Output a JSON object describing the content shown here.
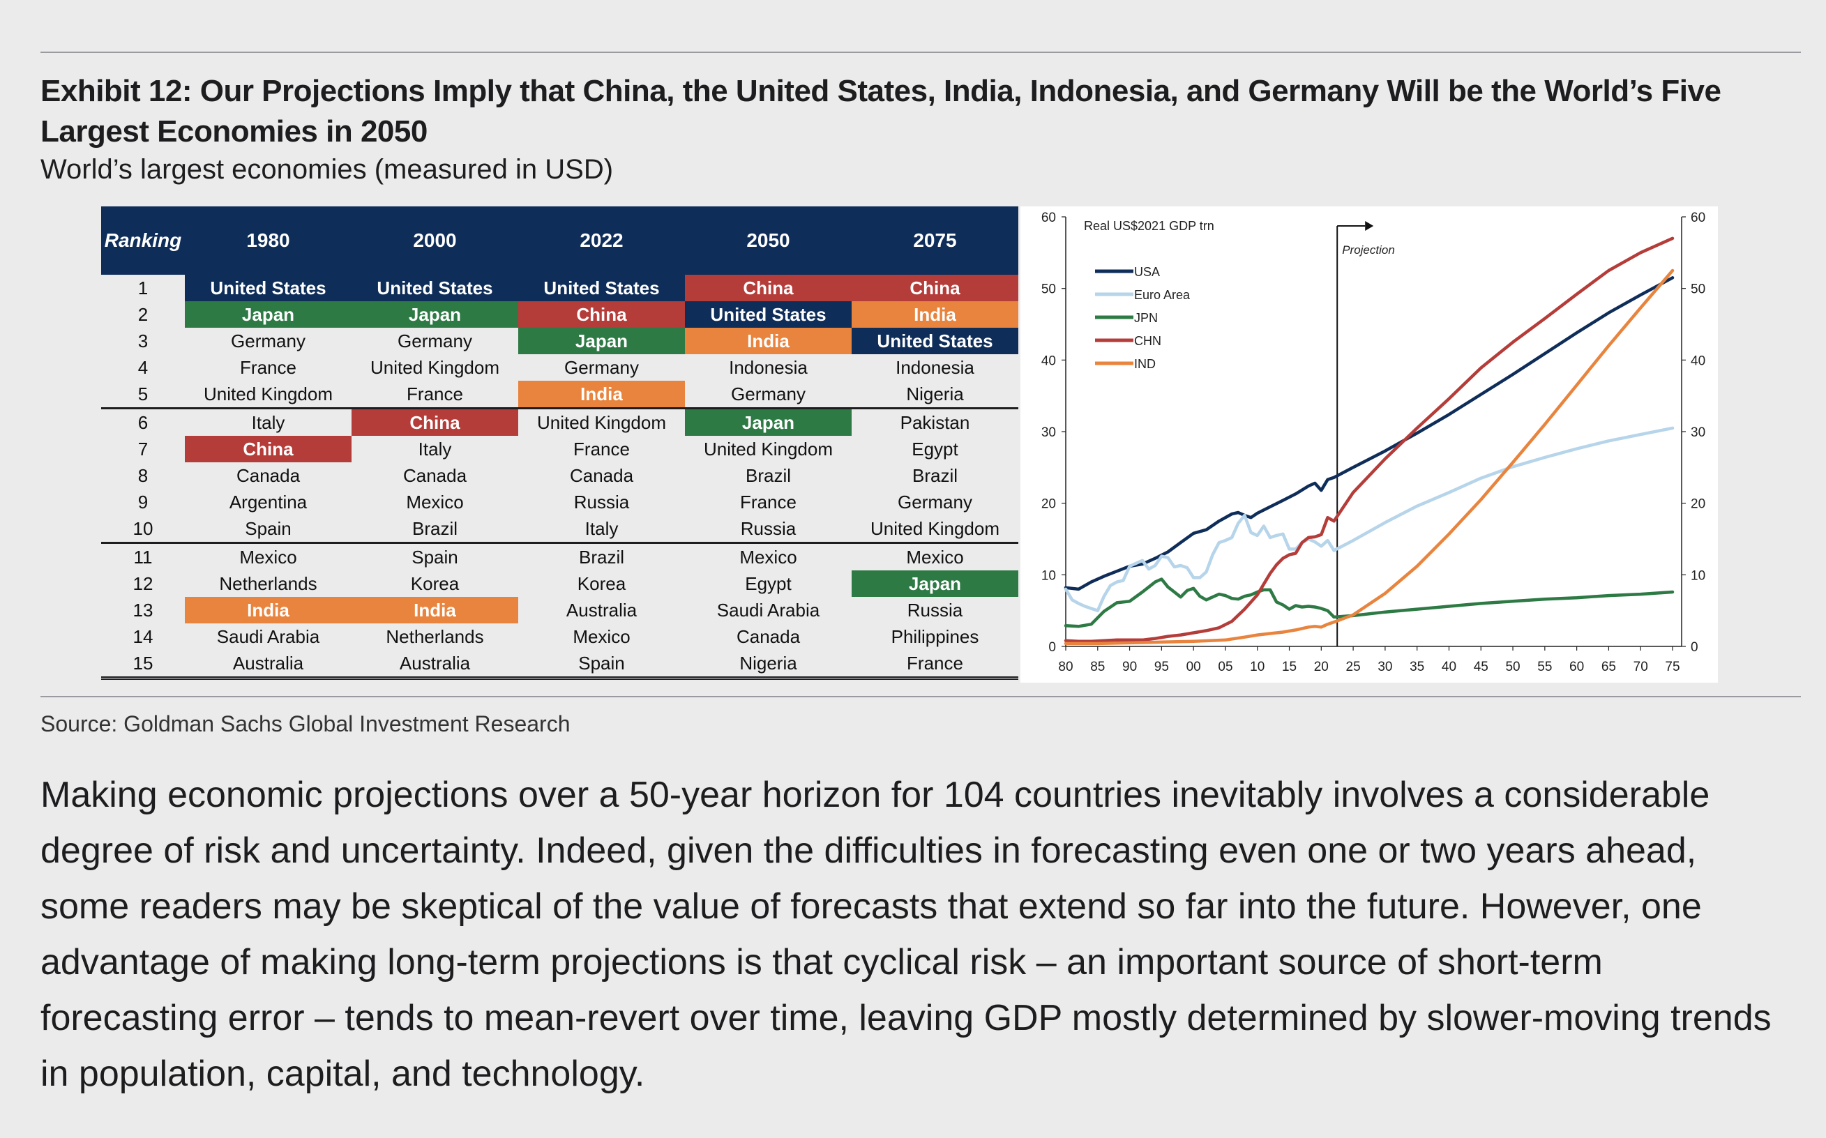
{
  "title": "Exhibit 12: Our Projections Imply that China, the United States, India, Indonesia, and Germany Will be the World’s Five Largest Economies in 2050",
  "subtitle": "World’s largest economies (measured in USD)",
  "table": {
    "headers": [
      "Ranking",
      "1980",
      "2000",
      "2022",
      "2050",
      "2075"
    ],
    "rows": [
      {
        "rank": "1",
        "cells": [
          "United States",
          "United States",
          "United States",
          "China",
          "China"
        ]
      },
      {
        "rank": "2",
        "cells": [
          "Japan",
          "Japan",
          "China",
          "United States",
          "India"
        ]
      },
      {
        "rank": "3",
        "cells": [
          "Germany",
          "Germany",
          "Japan",
          "India",
          "United States"
        ]
      },
      {
        "rank": "4",
        "cells": [
          "France",
          "United Kingdom",
          "Germany",
          "Indonesia",
          "Indonesia"
        ]
      },
      {
        "rank": "5",
        "cells": [
          "United Kingdom",
          "France",
          "India",
          "Germany",
          "Nigeria"
        ]
      },
      {
        "rank": "6",
        "cells": [
          "Italy",
          "China",
          "United Kingdom",
          "Japan",
          "Pakistan"
        ]
      },
      {
        "rank": "7",
        "cells": [
          "China",
          "Italy",
          "France",
          "United Kingdom",
          "Egypt"
        ]
      },
      {
        "rank": "8",
        "cells": [
          "Canada",
          "Canada",
          "Canada",
          "Brazil",
          "Brazil"
        ]
      },
      {
        "rank": "9",
        "cells": [
          "Argentina",
          "Mexico",
          "Russia",
          "France",
          "Germany"
        ]
      },
      {
        "rank": "10",
        "cells": [
          "Spain",
          "Brazil",
          "Italy",
          "Russia",
          "United Kingdom"
        ]
      },
      {
        "rank": "11",
        "cells": [
          "Mexico",
          "Spain",
          "Brazil",
          "Mexico",
          "Mexico"
        ]
      },
      {
        "rank": "12",
        "cells": [
          "Netherlands",
          "Korea",
          "Korea",
          "Egypt",
          "Japan"
        ]
      },
      {
        "rank": "13",
        "cells": [
          "India",
          "India",
          "Australia",
          "Saudi Arabia",
          "Russia"
        ]
      },
      {
        "rank": "14",
        "cells": [
          "Saudi Arabia",
          "Netherlands",
          "Mexico",
          "Canada",
          "Philippines"
        ]
      },
      {
        "rank": "15",
        "cells": [
          "Australia",
          "Australia",
          "Spain",
          "Nigeria",
          "France"
        ]
      }
    ],
    "highlight_colors": {
      "United States": "#0f2d59",
      "Japan": "#2e7a45",
      "China": "#b43c39",
      "India": "#e8843d"
    }
  },
  "chart_data": {
    "type": "line",
    "ylabel": "Real US$2021 GDP trn",
    "ylim": [
      0,
      60
    ],
    "yticks": [
      "0",
      "10",
      "20",
      "30",
      "40",
      "50",
      "60"
    ],
    "xlim": [
      1980,
      2075
    ],
    "xticks": [
      "80",
      "85",
      "90",
      "95",
      "00",
      "05",
      "10",
      "15",
      "20",
      "25",
      "30",
      "35",
      "40",
      "45",
      "50",
      "55",
      "60",
      "65",
      "70",
      "75"
    ],
    "projection_label": "Projection",
    "projection_start": 2022.5,
    "legend_position": "top-left",
    "series": [
      {
        "name": "USA",
        "color": "#0f2d59",
        "x": [
          1980,
          1982,
          1984,
          1986,
          1988,
          1990,
          1992,
          1994,
          1996,
          1998,
          2000,
          2002,
          2004,
          2006,
          2007,
          2008,
          2009,
          2010,
          2012,
          2014,
          2016,
          2018,
          2019,
          2020,
          2021,
          2022,
          2025,
          2030,
          2035,
          2040,
          2045,
          2050,
          2055,
          2060,
          2065,
          2070,
          2075
        ],
        "y": [
          8.2,
          8.0,
          9.0,
          9.8,
          10.5,
          11.2,
          11.5,
          12.3,
          13.2,
          14.5,
          15.8,
          16.3,
          17.5,
          18.5,
          18.7,
          18.3,
          18.0,
          18.6,
          19.5,
          20.4,
          21.3,
          22.4,
          22.8,
          21.8,
          23.3,
          23.6,
          25.0,
          27.3,
          29.8,
          32.4,
          35.2,
          38.0,
          40.9,
          43.8,
          46.6,
          49.1,
          51.5
        ]
      },
      {
        "name": "Euro Area",
        "color": "#b6d4ea",
        "x": [
          1980,
          1981,
          1982,
          1983,
          1984,
          1985,
          1986,
          1987,
          1988,
          1989,
          1990,
          1992,
          1993,
          1994,
          1995,
          1996,
          1997,
          1998,
          1999,
          2000,
          2001,
          2002,
          2003,
          2004,
          2005,
          2006,
          2007,
          2008,
          2009,
          2010,
          2011,
          2012,
          2013,
          2014,
          2015,
          2016,
          2017,
          2018,
          2019,
          2020,
          2021,
          2022,
          2025,
          2030,
          2035,
          2040,
          2045,
          2050,
          2055,
          2060,
          2065,
          2070,
          2075
        ],
        "y": [
          8.0,
          6.5,
          6.0,
          5.6,
          5.3,
          5.0,
          7.0,
          8.5,
          9.0,
          9.2,
          11.2,
          12.0,
          10.8,
          11.3,
          12.6,
          12.4,
          11.1,
          11.3,
          11.0,
          9.6,
          9.6,
          10.4,
          12.8,
          14.5,
          14.8,
          15.2,
          17.2,
          18.3,
          15.9,
          15.5,
          16.8,
          15.2,
          15.5,
          15.7,
          13.6,
          13.6,
          14.5,
          15.0,
          14.6,
          14.0,
          14.8,
          13.4,
          14.8,
          17.3,
          19.6,
          21.5,
          23.5,
          25.1,
          26.4,
          27.6,
          28.7,
          29.6,
          30.5
        ]
      },
      {
        "name": "JPN",
        "color": "#2e7a45",
        "x": [
          1980,
          1982,
          1984,
          1986,
          1988,
          1990,
          1992,
          1993,
          1994,
          1995,
          1996,
          1997,
          1998,
          1999,
          2000,
          2001,
          2002,
          2003,
          2004,
          2005,
          2006,
          2007,
          2008,
          2009,
          2010,
          2011,
          2012,
          2013,
          2014,
          2015,
          2016,
          2017,
          2018,
          2019,
          2020,
          2021,
          2022,
          2025,
          2030,
          2035,
          2040,
          2045,
          2050,
          2055,
          2060,
          2065,
          2070,
          2075
        ],
        "y": [
          2.9,
          2.8,
          3.1,
          4.9,
          6.1,
          6.3,
          7.6,
          8.3,
          9.0,
          9.4,
          8.3,
          7.6,
          6.9,
          7.8,
          8.1,
          7.0,
          6.5,
          6.9,
          7.3,
          7.1,
          6.7,
          6.6,
          7.0,
          7.2,
          7.6,
          7.9,
          7.9,
          6.2,
          5.8,
          5.2,
          5.7,
          5.5,
          5.6,
          5.5,
          5.3,
          5.0,
          4.1,
          4.3,
          4.8,
          5.2,
          5.6,
          6.0,
          6.3,
          6.6,
          6.8,
          7.1,
          7.3,
          7.6
        ]
      },
      {
        "name": "CHN",
        "color": "#b43c39",
        "x": [
          1980,
          1982,
          1984,
          1986,
          1988,
          1990,
          1992,
          1994,
          1996,
          1998,
          2000,
          2002,
          2004,
          2006,
          2008,
          2010,
          2011,
          2012,
          2013,
          2014,
          2015,
          2016,
          2017,
          2018,
          2019,
          2020,
          2021,
          2022,
          2025,
          2030,
          2035,
          2040,
          2045,
          2050,
          2055,
          2060,
          2065,
          2070,
          2075
        ],
        "y": [
          0.8,
          0.7,
          0.7,
          0.8,
          0.9,
          0.9,
          0.9,
          1.1,
          1.4,
          1.6,
          1.9,
          2.2,
          2.6,
          3.5,
          5.2,
          7.2,
          8.7,
          10.2,
          11.4,
          12.3,
          12.8,
          13.0,
          14.5,
          15.2,
          15.3,
          15.6,
          18.0,
          17.5,
          21.5,
          26.2,
          30.5,
          34.6,
          38.9,
          42.5,
          45.8,
          49.2,
          52.5,
          55.0,
          57.0
        ]
      },
      {
        "name": "IND",
        "color": "#e8843d",
        "x": [
          1980,
          1985,
          1990,
          1995,
          2000,
          2005,
          2008,
          2010,
          2012,
          2014,
          2016,
          2018,
          2019,
          2020,
          2021,
          2022,
          2025,
          2030,
          2035,
          2040,
          2045,
          2050,
          2055,
          2060,
          2065,
          2070,
          2075
        ],
        "y": [
          0.4,
          0.4,
          0.5,
          0.6,
          0.7,
          0.9,
          1.3,
          1.6,
          1.8,
          2.0,
          2.3,
          2.7,
          2.8,
          2.7,
          3.1,
          3.4,
          4.4,
          7.4,
          11.2,
          15.7,
          20.5,
          25.7,
          31.0,
          36.5,
          42.0,
          47.3,
          52.5
        ]
      }
    ]
  },
  "source": "Source: Goldman Sachs Global Investment Research",
  "body_text": "Making economic projections over a 50-year horizon for 104 countries inevitably involves a considerable degree of risk and uncertainty. Indeed, given the difficulties in forecasting even one or two years ahead, some readers may be skeptical of the value of forecasts that extend so far into the future. However, one advantage of making long-term projections is that cyclical risk – an important source of short-term forecasting error – tends to mean-revert over time, leaving GDP mostly determined by slower-moving trends in population, capital, and technology."
}
